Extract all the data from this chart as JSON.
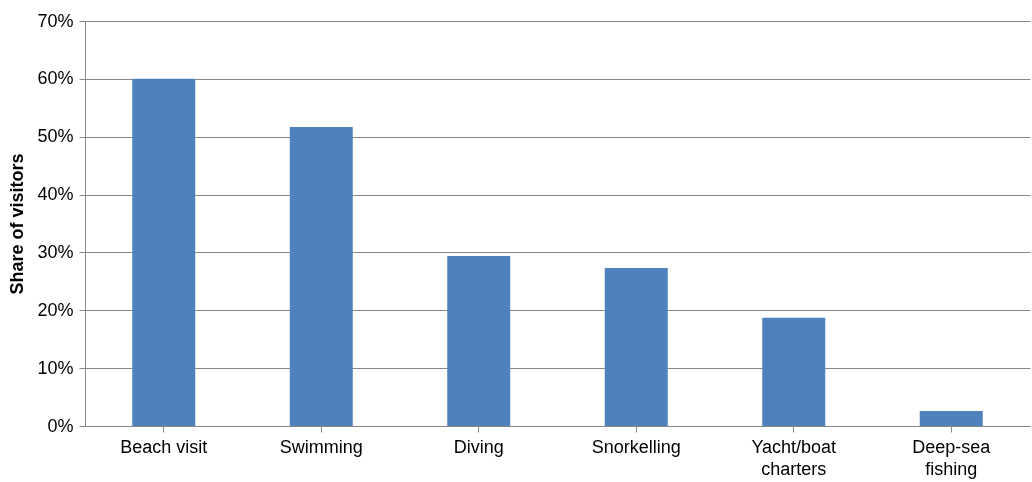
{
  "chart_data": {
    "type": "bar",
    "ylabel": "Share of visitors",
    "categories": [
      "Beach visit",
      "Swimming",
      "Diving",
      "Snorkelling",
      "Yacht/boat charters",
      "Deep-sea fishing"
    ],
    "values": [
      60,
      51.7,
      29.4,
      27.3,
      18.7,
      2.6
    ],
    "color": "#4f81bd",
    "ylim": [
      0,
      70
    ],
    "yticks": [
      {
        "value": 0,
        "label": "0%"
      },
      {
        "value": 10,
        "label": "10%"
      },
      {
        "value": 20,
        "label": "20%"
      },
      {
        "value": 30,
        "label": "30%"
      },
      {
        "value": 40,
        "label": "40%"
      },
      {
        "value": 50,
        "label": "50%"
      },
      {
        "value": 60,
        "label": "60%"
      },
      {
        "value": 70,
        "label": "70%"
      }
    ],
    "grid": "y"
  }
}
